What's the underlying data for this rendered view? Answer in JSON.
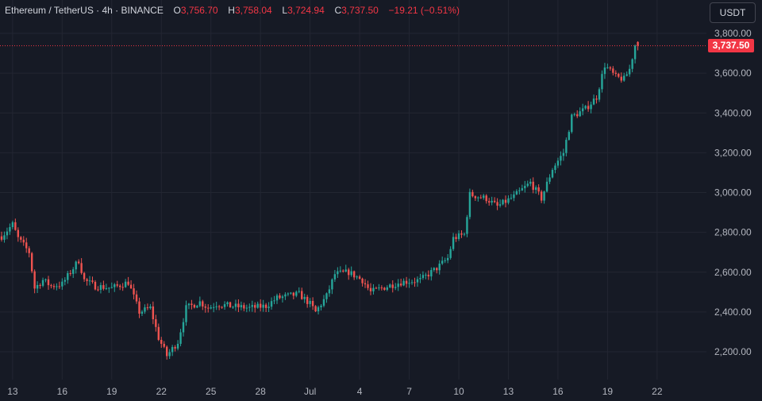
{
  "chart_data": {
    "type": "candlestick",
    "title": "Ethereum / TetherUS · 4h · BINANCE",
    "ohlc_header": {
      "o_label": "O",
      "open": "3,756.70",
      "h_label": "H",
      "high": "3,758.04",
      "l_label": "L",
      "low": "3,724.94",
      "c_label": "C",
      "close": "3,737.50",
      "change": "−19.21 (−0.51%)"
    },
    "currency": "USDT",
    "last_price": 3737.5,
    "last_price_label": "3,737.50",
    "ylim": [
      2130,
      3830
    ],
    "yticks": [
      {
        "value": 3800,
        "label": "3,800.00"
      },
      {
        "value": 3600,
        "label": "3,600.00"
      },
      {
        "value": 3400,
        "label": "3,400.00"
      },
      {
        "value": 3200,
        "label": "3,200.00"
      },
      {
        "value": 3000,
        "label": "3,000.00"
      },
      {
        "value": 2800,
        "label": "2,800.00"
      },
      {
        "value": 2600,
        "label": "2,600.00"
      },
      {
        "value": 2400,
        "label": "2,400.00"
      },
      {
        "value": 2200,
        "label": "2,200.00"
      }
    ],
    "xticks": [
      {
        "index": 4,
        "label": "13"
      },
      {
        "index": 22,
        "label": "16"
      },
      {
        "index": 40,
        "label": "19"
      },
      {
        "index": 58,
        "label": "22"
      },
      {
        "index": 76,
        "label": "25"
      },
      {
        "index": 94,
        "label": "28"
      },
      {
        "index": 112,
        "label": "Jul"
      },
      {
        "index": 130,
        "label": "4"
      },
      {
        "index": 148,
        "label": "7"
      },
      {
        "index": 166,
        "label": "10"
      },
      {
        "index": 184,
        "label": "13"
      },
      {
        "index": 202,
        "label": "16"
      },
      {
        "index": 220,
        "label": "19"
      },
      {
        "index": 238,
        "label": "22"
      }
    ],
    "keyframes": [
      [
        0,
        2780
      ],
      [
        4,
        2840
      ],
      [
        6,
        2770
      ],
      [
        10,
        2700
      ],
      [
        12,
        2520
      ],
      [
        15,
        2560
      ],
      [
        18,
        2530
      ],
      [
        22,
        2540
      ],
      [
        26,
        2620
      ],
      [
        28,
        2660
      ],
      [
        30,
        2560
      ],
      [
        34,
        2530
      ],
      [
        40,
        2520
      ],
      [
        46,
        2550
      ],
      [
        50,
        2400
      ],
      [
        54,
        2420
      ],
      [
        57,
        2270
      ],
      [
        60,
        2180
      ],
      [
        64,
        2250
      ],
      [
        67,
        2420
      ],
      [
        72,
        2450
      ],
      [
        75,
        2420
      ],
      [
        78,
        2440
      ],
      [
        83,
        2430
      ],
      [
        90,
        2420
      ],
      [
        96,
        2430
      ],
      [
        100,
        2470
      ],
      [
        108,
        2490
      ],
      [
        112,
        2440
      ],
      [
        114,
        2400
      ],
      [
        118,
        2480
      ],
      [
        121,
        2590
      ],
      [
        126,
        2600
      ],
      [
        131,
        2560
      ],
      [
        134,
        2500
      ],
      [
        138,
        2520
      ],
      [
        145,
        2550
      ],
      [
        152,
        2560
      ],
      [
        158,
        2620
      ],
      [
        162,
        2670
      ],
      [
        164,
        2770
      ],
      [
        168,
        2790
      ],
      [
        170,
        2990
      ],
      [
        176,
        2970
      ],
      [
        180,
        2930
      ],
      [
        186,
        2980
      ],
      [
        192,
        3050
      ],
      [
        196,
        2970
      ],
      [
        200,
        3120
      ],
      [
        204,
        3200
      ],
      [
        207,
        3380
      ],
      [
        212,
        3420
      ],
      [
        216,
        3480
      ],
      [
        219,
        3640
      ],
      [
        223,
        3580
      ],
      [
        226,
        3570
      ],
      [
        228,
        3620
      ],
      [
        230,
        3740
      ],
      [
        231,
        3737.5
      ]
    ]
  }
}
